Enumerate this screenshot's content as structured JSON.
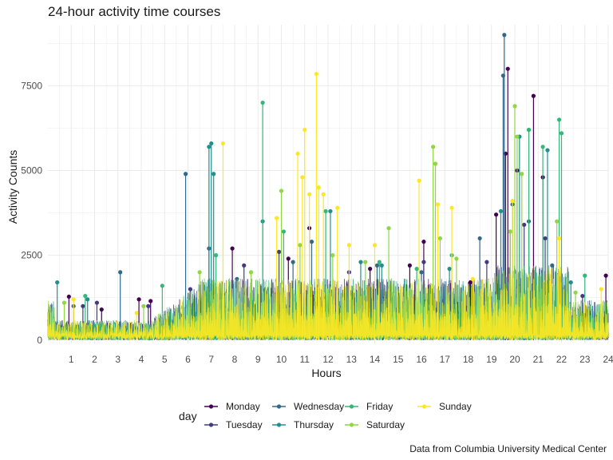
{
  "chart_data": {
    "type": "line",
    "title": "24-hour activity time courses",
    "xlabel": "Hours",
    "ylabel": "Activity Counts",
    "caption": "Data from Columbia University Medical Center",
    "xlim": [
      0,
      24
    ],
    "ylim": [
      -100,
      9300
    ],
    "x_ticks": [
      1,
      2,
      3,
      4,
      5,
      6,
      7,
      8,
      9,
      10,
      11,
      12,
      13,
      14,
      15,
      16,
      17,
      18,
      19,
      20,
      21,
      22,
      23,
      24
    ],
    "y_ticks": [
      0,
      2500,
      5000,
      7500
    ],
    "y_tick_labels": [
      "0",
      "2500",
      "5000",
      "7500"
    ],
    "grid": true,
    "legend": {
      "title": "day",
      "position": "bottom",
      "layout": [
        [
          "Monday",
          "Wednesday",
          "Friday",
          "Sunday"
        ],
        [
          "Tuesday",
          "Thursday",
          "Saturday"
        ]
      ]
    },
    "series": [
      {
        "name": "Monday",
        "color": "#440154",
        "peaks": [
          [
            0.9,
            1280
          ],
          [
            2.3,
            900
          ],
          [
            3.9,
            1200
          ],
          [
            4.4,
            1150
          ],
          [
            7.9,
            2700
          ],
          [
            10.3,
            2400
          ],
          [
            11.2,
            3300
          ],
          [
            13.8,
            2100
          ],
          [
            15.5,
            2200
          ],
          [
            16.1,
            2900
          ],
          [
            18.1,
            1700
          ],
          [
            19.2,
            3700
          ],
          [
            19.6,
            5500
          ],
          [
            19.7,
            8000
          ],
          [
            20.1,
            5000
          ],
          [
            20.8,
            7200
          ],
          [
            21.2,
            4800
          ],
          [
            23.9,
            1900
          ]
        ]
      },
      {
        "name": "Tuesday",
        "color": "#443a83",
        "peaks": [
          [
            1.5,
            1000
          ],
          [
            2.1,
            1100
          ],
          [
            4.3,
            1000
          ],
          [
            6.1,
            1500
          ],
          [
            8.4,
            2200
          ],
          [
            9.9,
            2600
          ],
          [
            12.9,
            2000
          ],
          [
            16.1,
            2300
          ],
          [
            18.8,
            2300
          ],
          [
            19.8,
            3200
          ],
          [
            20.4,
            3400
          ],
          [
            21.3,
            3000
          ],
          [
            22.9,
            1300
          ]
        ]
      },
      {
        "name": "Wednesday",
        "color": "#31688e",
        "peaks": [
          [
            1.1,
            1000
          ],
          [
            3.1,
            2000
          ],
          [
            5.9,
            4900
          ],
          [
            6.9,
            2700
          ],
          [
            8.1,
            1800
          ],
          [
            10.5,
            2300
          ],
          [
            11.3,
            2900
          ],
          [
            14.1,
            2200
          ],
          [
            16.0,
            2000
          ],
          [
            18.5,
            3000
          ],
          [
            19.5,
            7800
          ],
          [
            19.55,
            9000
          ],
          [
            19.9,
            4000
          ],
          [
            20.6,
            3500
          ],
          [
            21.6,
            2200
          ]
        ]
      },
      {
        "name": "Thursday",
        "color": "#21908d",
        "peaks": [
          [
            0.4,
            1700
          ],
          [
            1.7,
            1200
          ],
          [
            6.9,
            5700
          ],
          [
            7.0,
            5800
          ],
          [
            7.1,
            4900
          ],
          [
            9.2,
            3500
          ],
          [
            12.1,
            3800
          ],
          [
            13.4,
            2300
          ],
          [
            14.3,
            2200
          ],
          [
            17.2,
            2100
          ],
          [
            19.4,
            3800
          ],
          [
            20.2,
            6000
          ],
          [
            20.6,
            6200
          ],
          [
            21.4,
            5600
          ],
          [
            22.4,
            1700
          ]
        ]
      },
      {
        "name": "Friday",
        "color": "#35b779",
        "peaks": [
          [
            1.6,
            1300
          ],
          [
            4.9,
            1600
          ],
          [
            7.2,
            2500
          ],
          [
            9.2,
            7000
          ],
          [
            10.1,
            3200
          ],
          [
            11.9,
            3800
          ],
          [
            14.2,
            2300
          ],
          [
            15.8,
            2100
          ],
          [
            17.3,
            2500
          ],
          [
            19.9,
            4100
          ],
          [
            20.6,
            6200
          ],
          [
            21.2,
            5700
          ],
          [
            21.9,
            6500
          ],
          [
            22.0,
            6100
          ],
          [
            23.0,
            1900
          ]
        ]
      },
      {
        "name": "Saturday",
        "color": "#8fd744",
        "peaks": [
          [
            0.7,
            1100
          ],
          [
            4.1,
            1000
          ],
          [
            6.5,
            2000
          ],
          [
            8.7,
            2000
          ],
          [
            10.0,
            4400
          ],
          [
            10.8,
            2800
          ],
          [
            12.2,
            2500
          ],
          [
            13.6,
            2300
          ],
          [
            14.6,
            3300
          ],
          [
            16.5,
            5700
          ],
          [
            16.6,
            5200
          ],
          [
            16.8,
            3000
          ],
          [
            17.5,
            2400
          ],
          [
            19.8,
            3200
          ],
          [
            20.0,
            6900
          ],
          [
            20.1,
            6000
          ],
          [
            20.3,
            4900
          ],
          [
            21.8,
            3500
          ],
          [
            22.6,
            1400
          ]
        ]
      },
      {
        "name": "Sunday",
        "color": "#fde725",
        "peaks": [
          [
            1.1,
            1200
          ],
          [
            3.8,
            800
          ],
          [
            7.5,
            5800
          ],
          [
            9.8,
            3600
          ],
          [
            10.7,
            5500
          ],
          [
            10.9,
            4800
          ],
          [
            11.0,
            6200
          ],
          [
            11.2,
            4300
          ],
          [
            11.5,
            7850
          ],
          [
            11.6,
            4500
          ],
          [
            11.8,
            4300
          ],
          [
            12.4,
            3900
          ],
          [
            12.9,
            2800
          ],
          [
            14.0,
            2800
          ],
          [
            15.9,
            4700
          ],
          [
            16.7,
            4000
          ],
          [
            17.3,
            3900
          ],
          [
            18.2,
            1800
          ],
          [
            19.9,
            4100
          ],
          [
            21.9,
            3000
          ],
          [
            23.7,
            1500
          ]
        ]
      }
    ]
  }
}
